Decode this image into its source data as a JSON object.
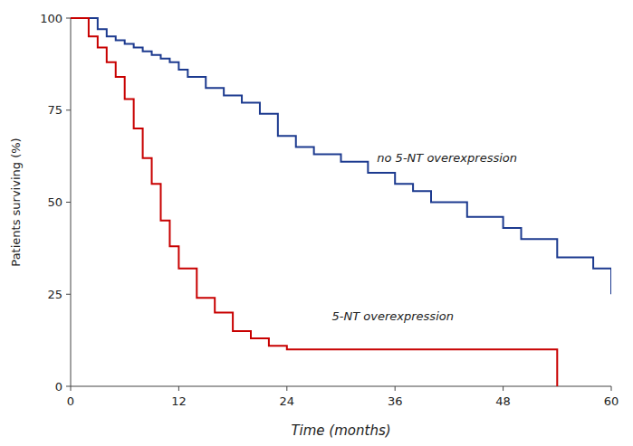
{
  "chart_data": {
    "type": "step",
    "xlabel": "Time (months)",
    "ylabel": "Patients surviving (%)",
    "series": [
      {
        "color": "#1c3a8f",
        "x": [
          0,
          2,
          3,
          4,
          5,
          6,
          7,
          8,
          9,
          10,
          11,
          12,
          13,
          15,
          17,
          19,
          21,
          23,
          25,
          27,
          30,
          33,
          36,
          38,
          40,
          44,
          48,
          50,
          54,
          58,
          60
        ],
        "values": [
          100,
          100,
          97,
          95,
          94,
          93,
          92,
          91,
          90,
          89,
          88,
          86,
          84,
          81,
          79,
          77,
          74,
          68,
          65,
          63,
          61,
          58,
          55,
          53,
          50,
          46,
          43,
          40,
          35,
          32,
          25
        ]
      },
      {
        "color": "#c80000",
        "x": [
          0,
          2,
          3,
          4,
          5,
          6,
          7,
          8,
          9,
          10,
          11,
          12,
          14,
          16,
          18,
          20,
          22,
          24,
          53,
          54
        ],
        "values": [
          100,
          95,
          92,
          88,
          84,
          78,
          70,
          62,
          55,
          45,
          38,
          32,
          24,
          20,
          15,
          13,
          11,
          10,
          10,
          0
        ]
      }
    ],
    "annotations": [
      {
        "text": "no 5-NT overexpression",
        "x": 34,
        "y": 62
      },
      {
        "text": "5-NT overexpression",
        "x": 29,
        "y": 19
      }
    ],
    "xlim": [
      0,
      60
    ],
    "ylim": [
      0,
      100
    ],
    "xticks": [
      0,
      12,
      24,
      36,
      48,
      60
    ],
    "yticks": [
      0,
      25,
      50,
      75,
      100
    ],
    "grid": false
  }
}
